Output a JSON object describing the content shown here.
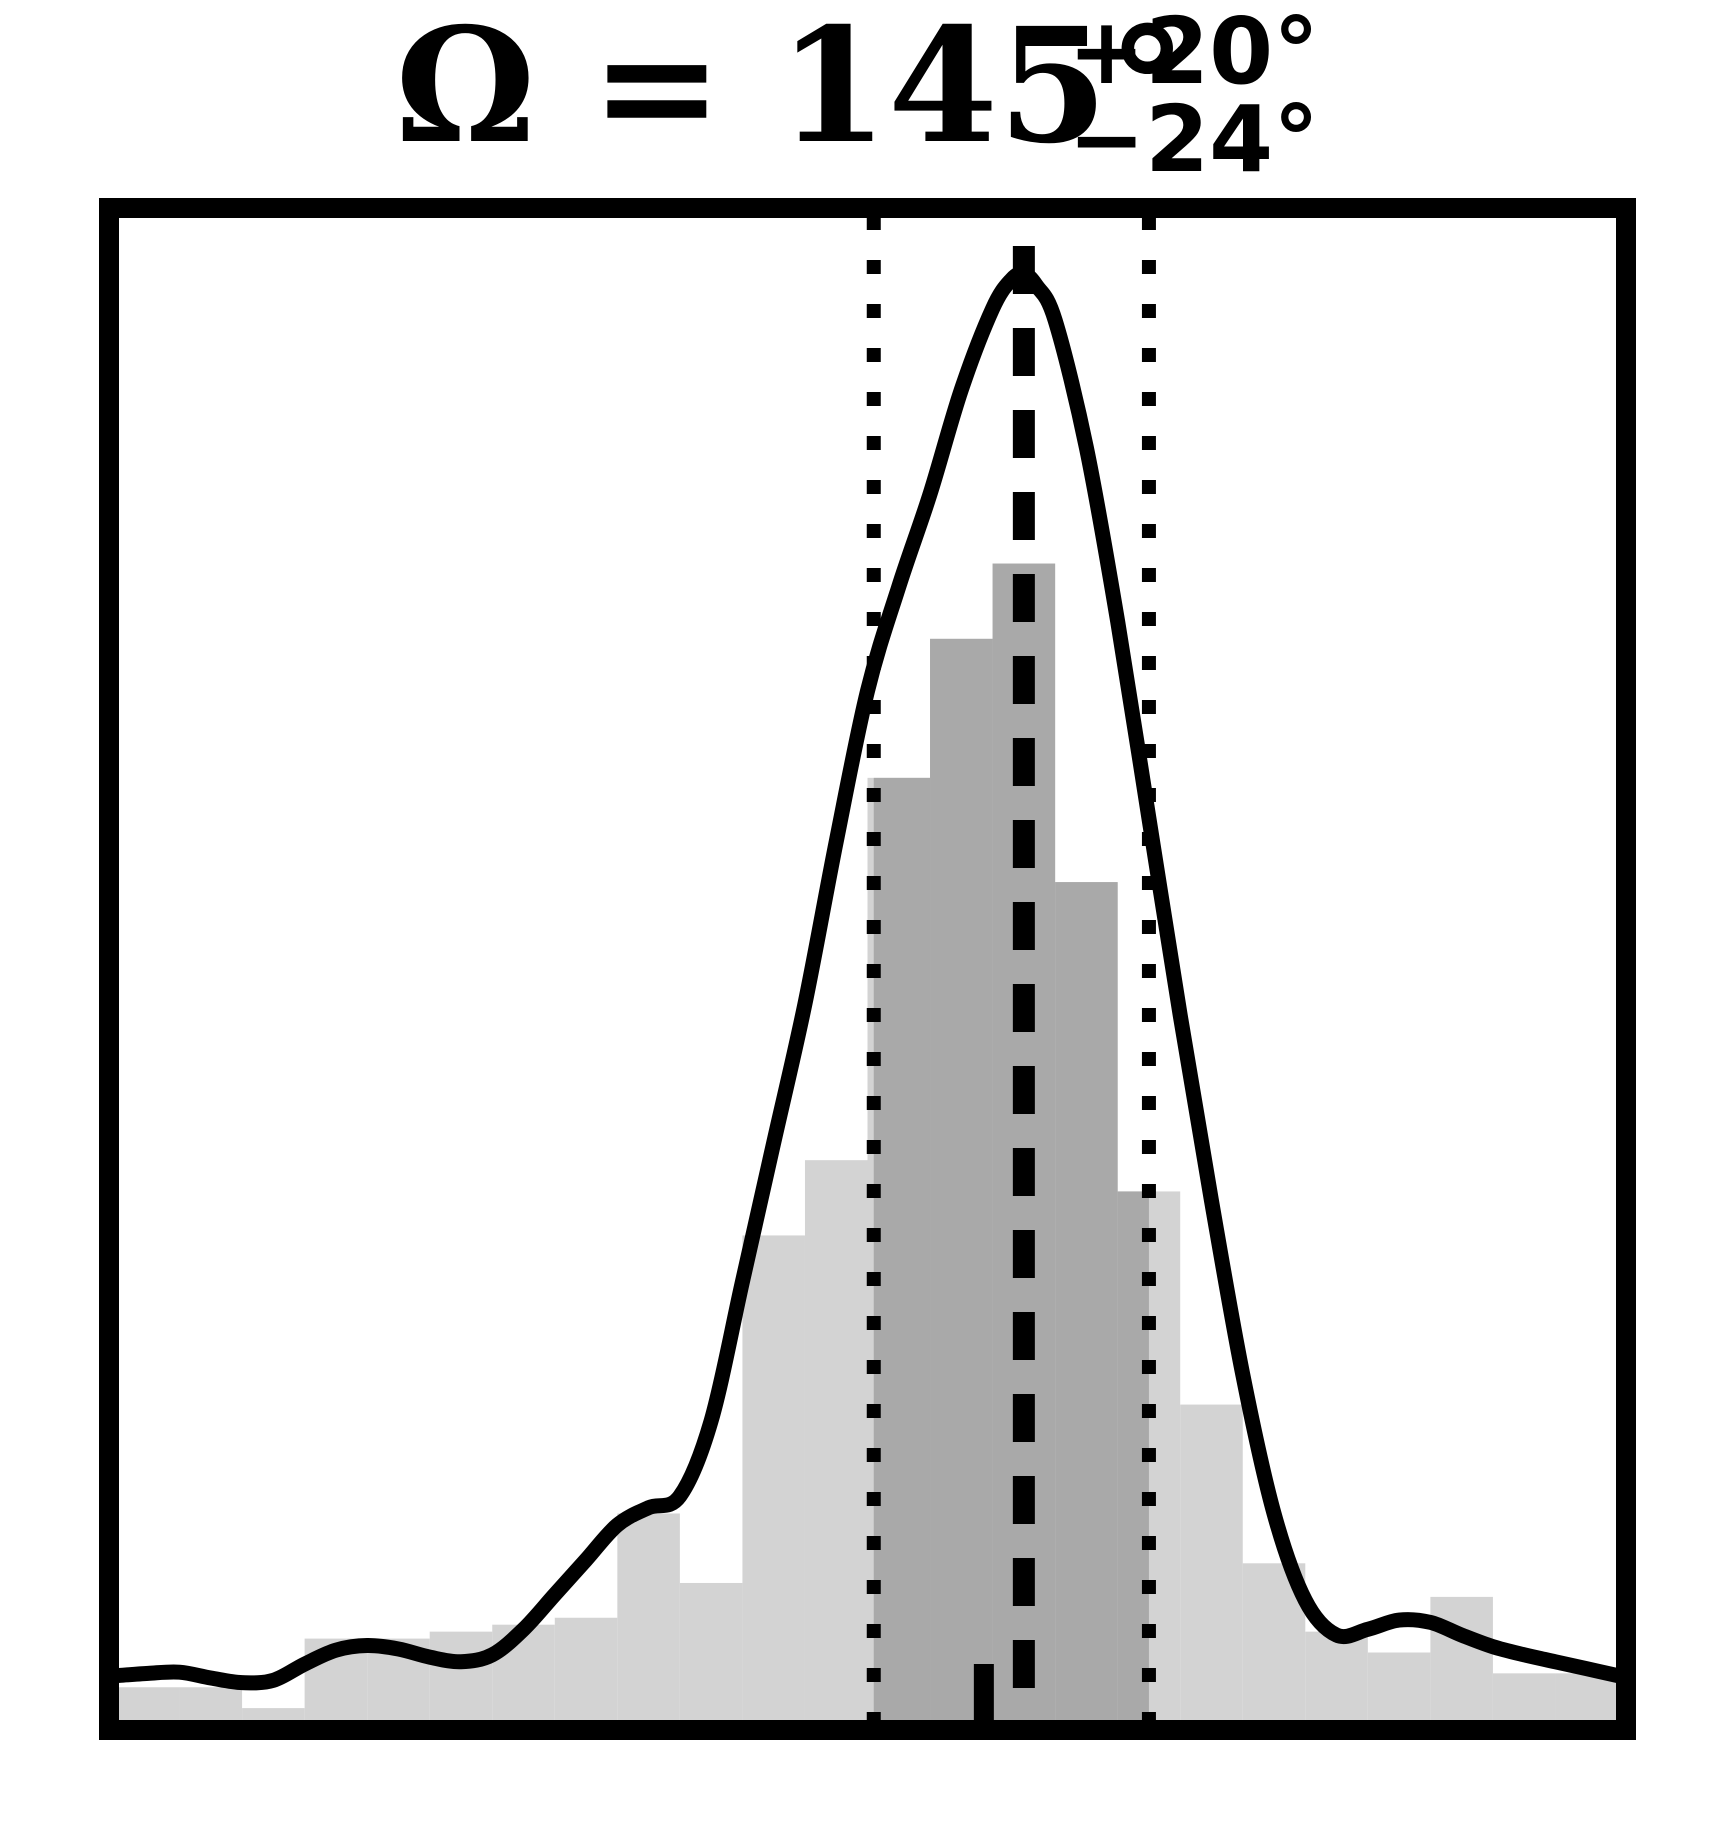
{
  "chart_data": {
    "type": "histogram",
    "title": {
      "main": "Ω = 145°",
      "upper": "+20°",
      "lower": "−24°"
    },
    "median": 145,
    "upper_err": 20,
    "lower_err": 24,
    "bins": [
      {
        "x0": 0,
        "x1": 10,
        "value": 0.03
      },
      {
        "x0": 10,
        "x1": 20,
        "value": 0.03
      },
      {
        "x0": 20,
        "x1": 30,
        "value": 0.012
      },
      {
        "x0": 30,
        "x1": 40,
        "value": 0.072
      },
      {
        "x0": 40,
        "x1": 50,
        "value": 0.072
      },
      {
        "x0": 50,
        "x1": 60,
        "value": 0.078
      },
      {
        "x0": 60,
        "x1": 70,
        "value": 0.084
      },
      {
        "x0": 70,
        "x1": 80,
        "value": 0.09
      },
      {
        "x0": 80,
        "x1": 90,
        "value": 0.18
      },
      {
        "x0": 90,
        "x1": 100,
        "value": 0.12
      },
      {
        "x0": 100,
        "x1": 110,
        "value": 0.42
      },
      {
        "x0": 110,
        "x1": 120,
        "value": 0.485
      },
      {
        "x0": 120,
        "x1": 130,
        "value": 0.815
      },
      {
        "x0": 130,
        "x1": 140,
        "value": 0.935
      },
      {
        "x0": 140,
        "x1": 150,
        "value": 1.0
      },
      {
        "x0": 150,
        "x1": 160,
        "value": 0.725
      },
      {
        "x0": 160,
        "x1": 170,
        "value": 0.458
      },
      {
        "x0": 170,
        "x1": 180,
        "value": 0.274
      },
      {
        "x0": 180,
        "x1": 190,
        "value": 0.137
      },
      {
        "x0": 190,
        "x1": 200,
        "value": 0.078
      },
      {
        "x0": 200,
        "x1": 210,
        "value": 0.06
      },
      {
        "x0": 210,
        "x1": 220,
        "value": 0.108
      },
      {
        "x0": 220,
        "x1": 230,
        "value": 0.042
      },
      {
        "x0": 230,
        "x1": 240,
        "value": 0.042
      }
    ],
    "kde": {
      "x": [
        0,
        5,
        10,
        15,
        20,
        25,
        30,
        35,
        40,
        45,
        50,
        55,
        60,
        65,
        70,
        75,
        80,
        85,
        90,
        95,
        100,
        105,
        110,
        115,
        120,
        125,
        130,
        135,
        140,
        143,
        145,
        147,
        150,
        155,
        160,
        165,
        170,
        175,
        180,
        185,
        190,
        195,
        200,
        205,
        210,
        215,
        220,
        225,
        230,
        235,
        240
      ],
      "y": [
        0.04,
        0.042,
        0.043,
        0.038,
        0.034,
        0.036,
        0.05,
        0.062,
        0.066,
        0.063,
        0.056,
        0.052,
        0.058,
        0.08,
        0.11,
        0.14,
        0.17,
        0.185,
        0.195,
        0.26,
        0.38,
        0.5,
        0.62,
        0.76,
        0.89,
        0.98,
        1.06,
        1.15,
        1.22,
        1.245,
        1.25,
        1.24,
        1.21,
        1.1,
        0.95,
        0.78,
        0.61,
        0.45,
        0.3,
        0.18,
        0.105,
        0.075,
        0.08,
        0.088,
        0.086,
        0.075,
        0.065,
        0.058,
        0.052,
        0.046,
        0.04
      ]
    },
    "shaded_range": [
      121,
      165
    ],
    "xlim": [
      0,
      240
    ],
    "ylim": [
      0,
      1.3
    ],
    "grid": false,
    "colors": {
      "hist_light": "#d3d3d3",
      "hist_dark": "#a9a9a9",
      "line": "#000000",
      "frame": "#000000"
    }
  }
}
